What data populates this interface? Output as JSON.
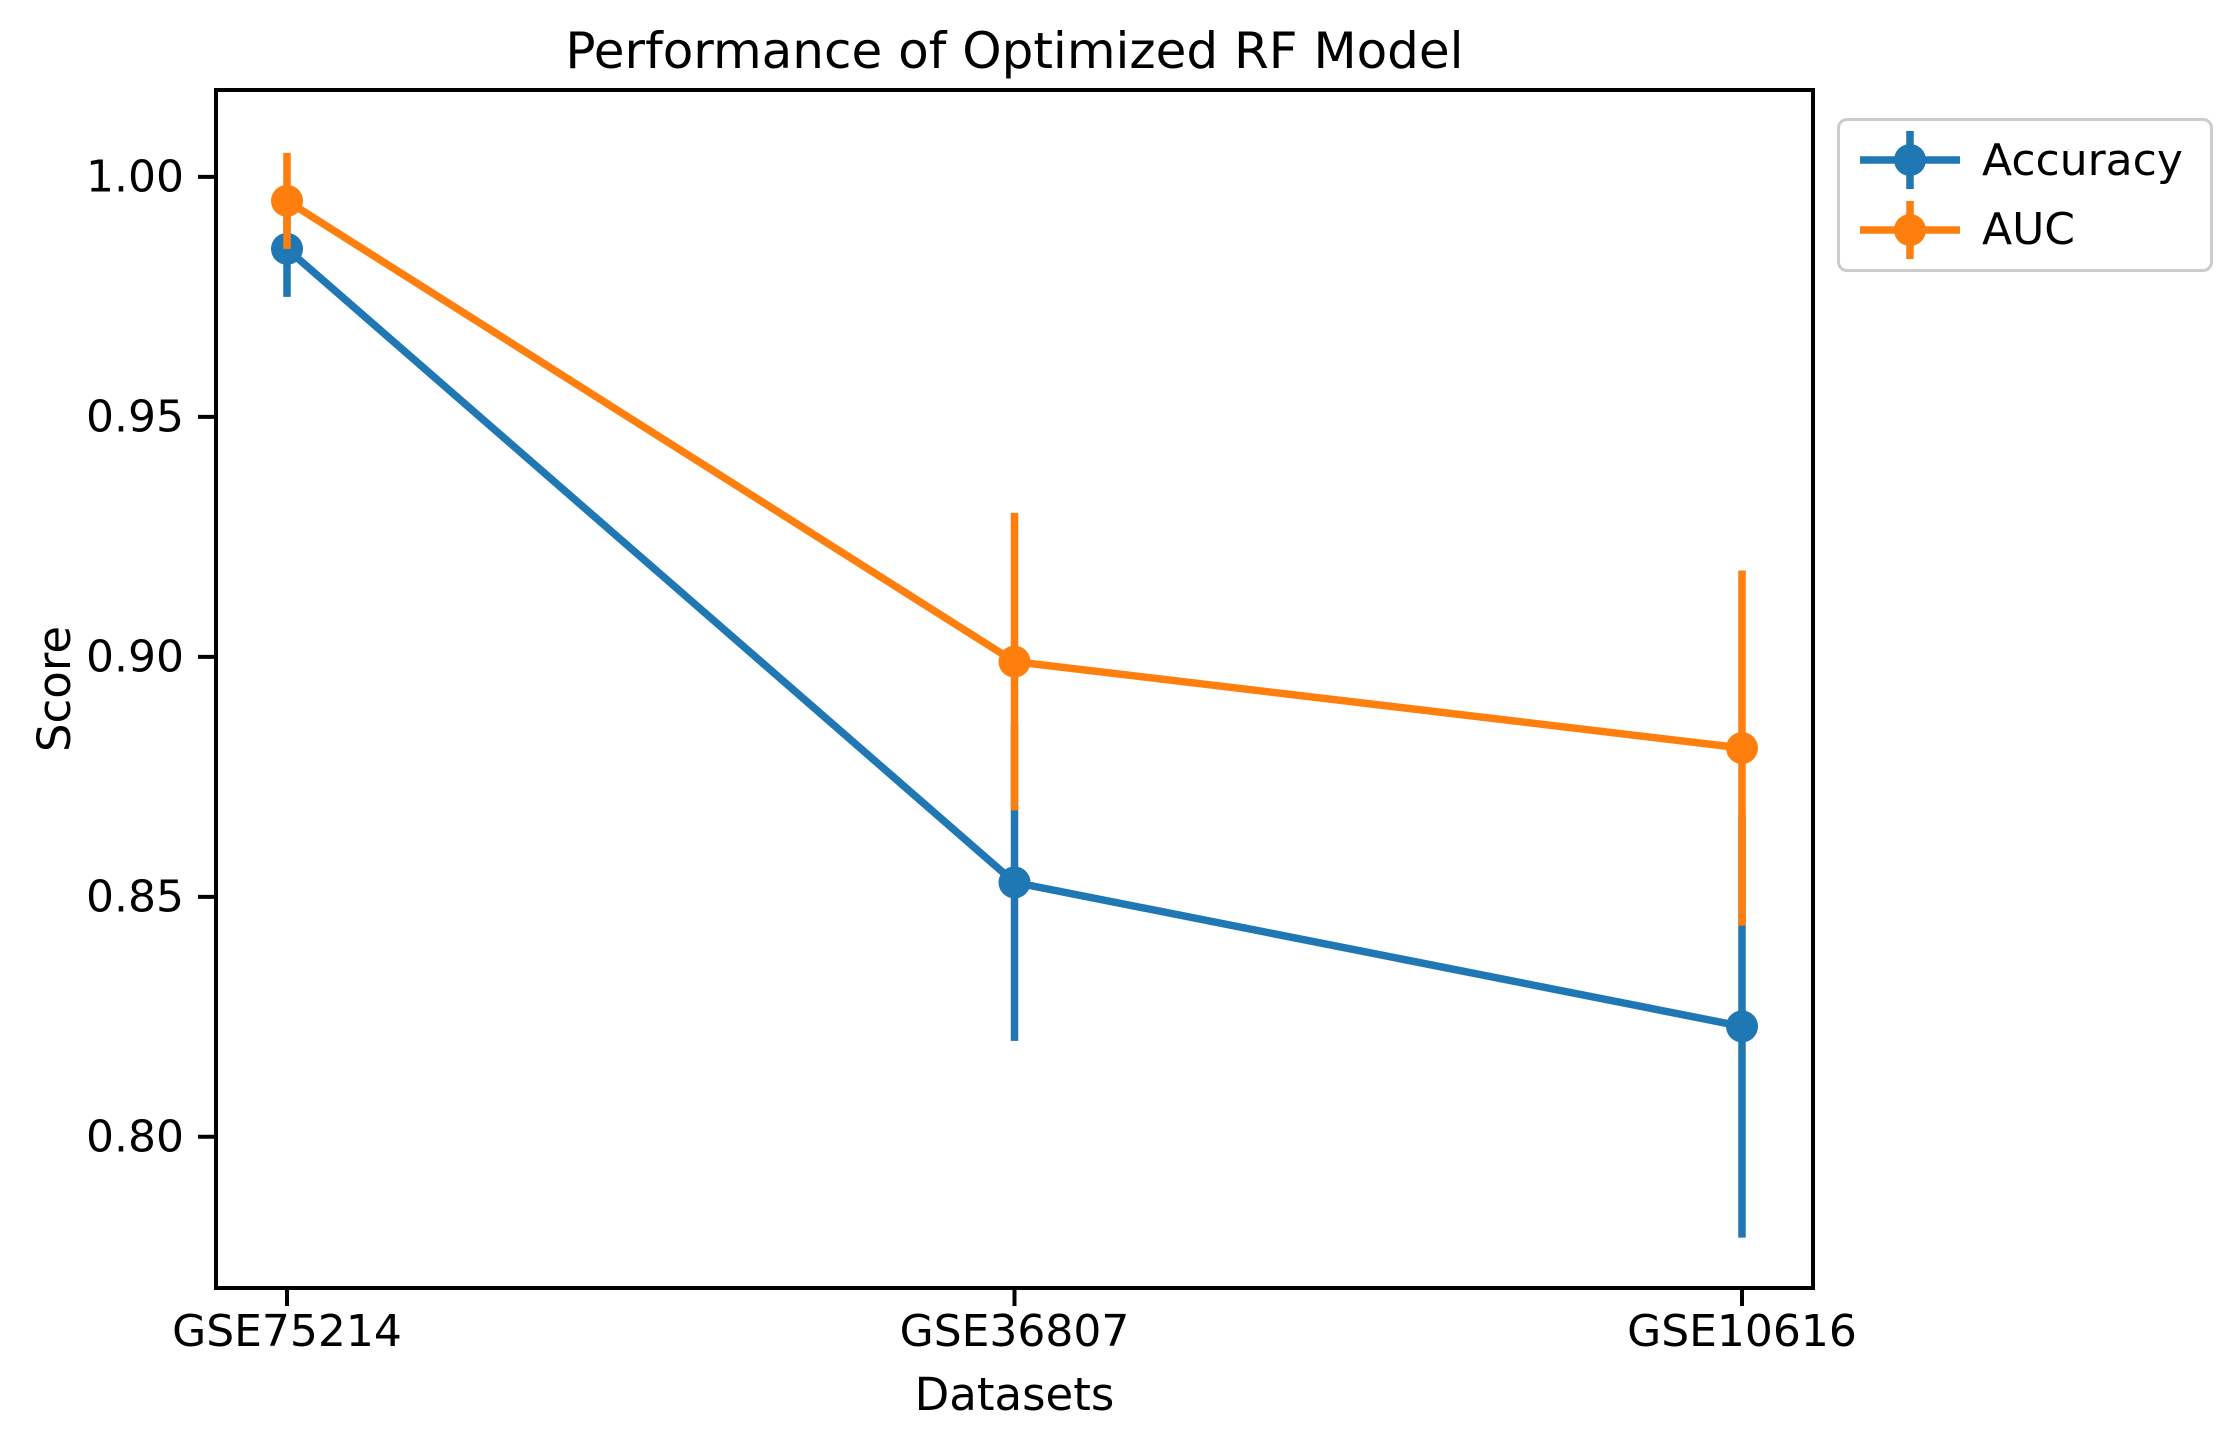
{
  "chart_data": {
    "type": "line",
    "title": "Performance of Optimized RF Model",
    "xlabel": "Datasets",
    "ylabel": "Score",
    "categories": [
      "GSE75214",
      "GSE36807",
      "GSE10616"
    ],
    "series": [
      {
        "name": "Accuracy",
        "color": "#1f77b4",
        "values": [
          0.985,
          0.853,
          0.823
        ],
        "errors": [
          0.01,
          0.033,
          0.044
        ]
      },
      {
        "name": "AUC",
        "color": "#ff7f0e",
        "values": [
          0.995,
          0.899,
          0.881
        ],
        "errors": [
          0.01,
          0.031,
          0.037
        ]
      }
    ],
    "yticks": [
      {
        "label": "0.80",
        "value": 0.8
      },
      {
        "label": "0.85",
        "value": 0.85
      },
      {
        "label": "0.90",
        "value": 0.9
      },
      {
        "label": "0.95",
        "value": 0.95
      },
      {
        "label": "1.00",
        "value": 1.0
      }
    ],
    "ylim": [
      0.7685,
      1.0181
    ],
    "grid": false,
    "marker": "circle",
    "error_caps": false,
    "legend_position": "upper-right"
  },
  "style_colors": {
    "axis": "#000000",
    "text": "#000000",
    "legend_border": "#cccccc",
    "background": "#ffffff"
  }
}
